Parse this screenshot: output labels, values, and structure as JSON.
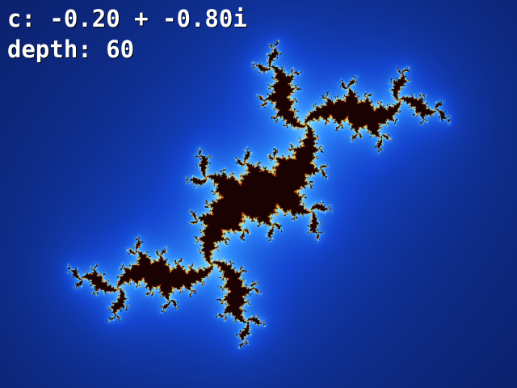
{
  "overlay": {
    "parameter_text": "c: -0.20 + -0.80i",
    "depth_text": "depth: 60"
  },
  "fractal": {
    "type": "julia-set",
    "c_real": -0.2,
    "c_imag": -0.8,
    "max_iterations": 60
  },
  "colors": {
    "background": "#020617",
    "interior": "#1a0203",
    "outer_blue": "#0a1a5a",
    "mid_blue": "#1446d0",
    "inner_blue": "#2f8cff",
    "edge_cyan": "#7fd8ff",
    "edge_yellow": "#f2d34a",
    "edge_red": "#c43a18"
  }
}
